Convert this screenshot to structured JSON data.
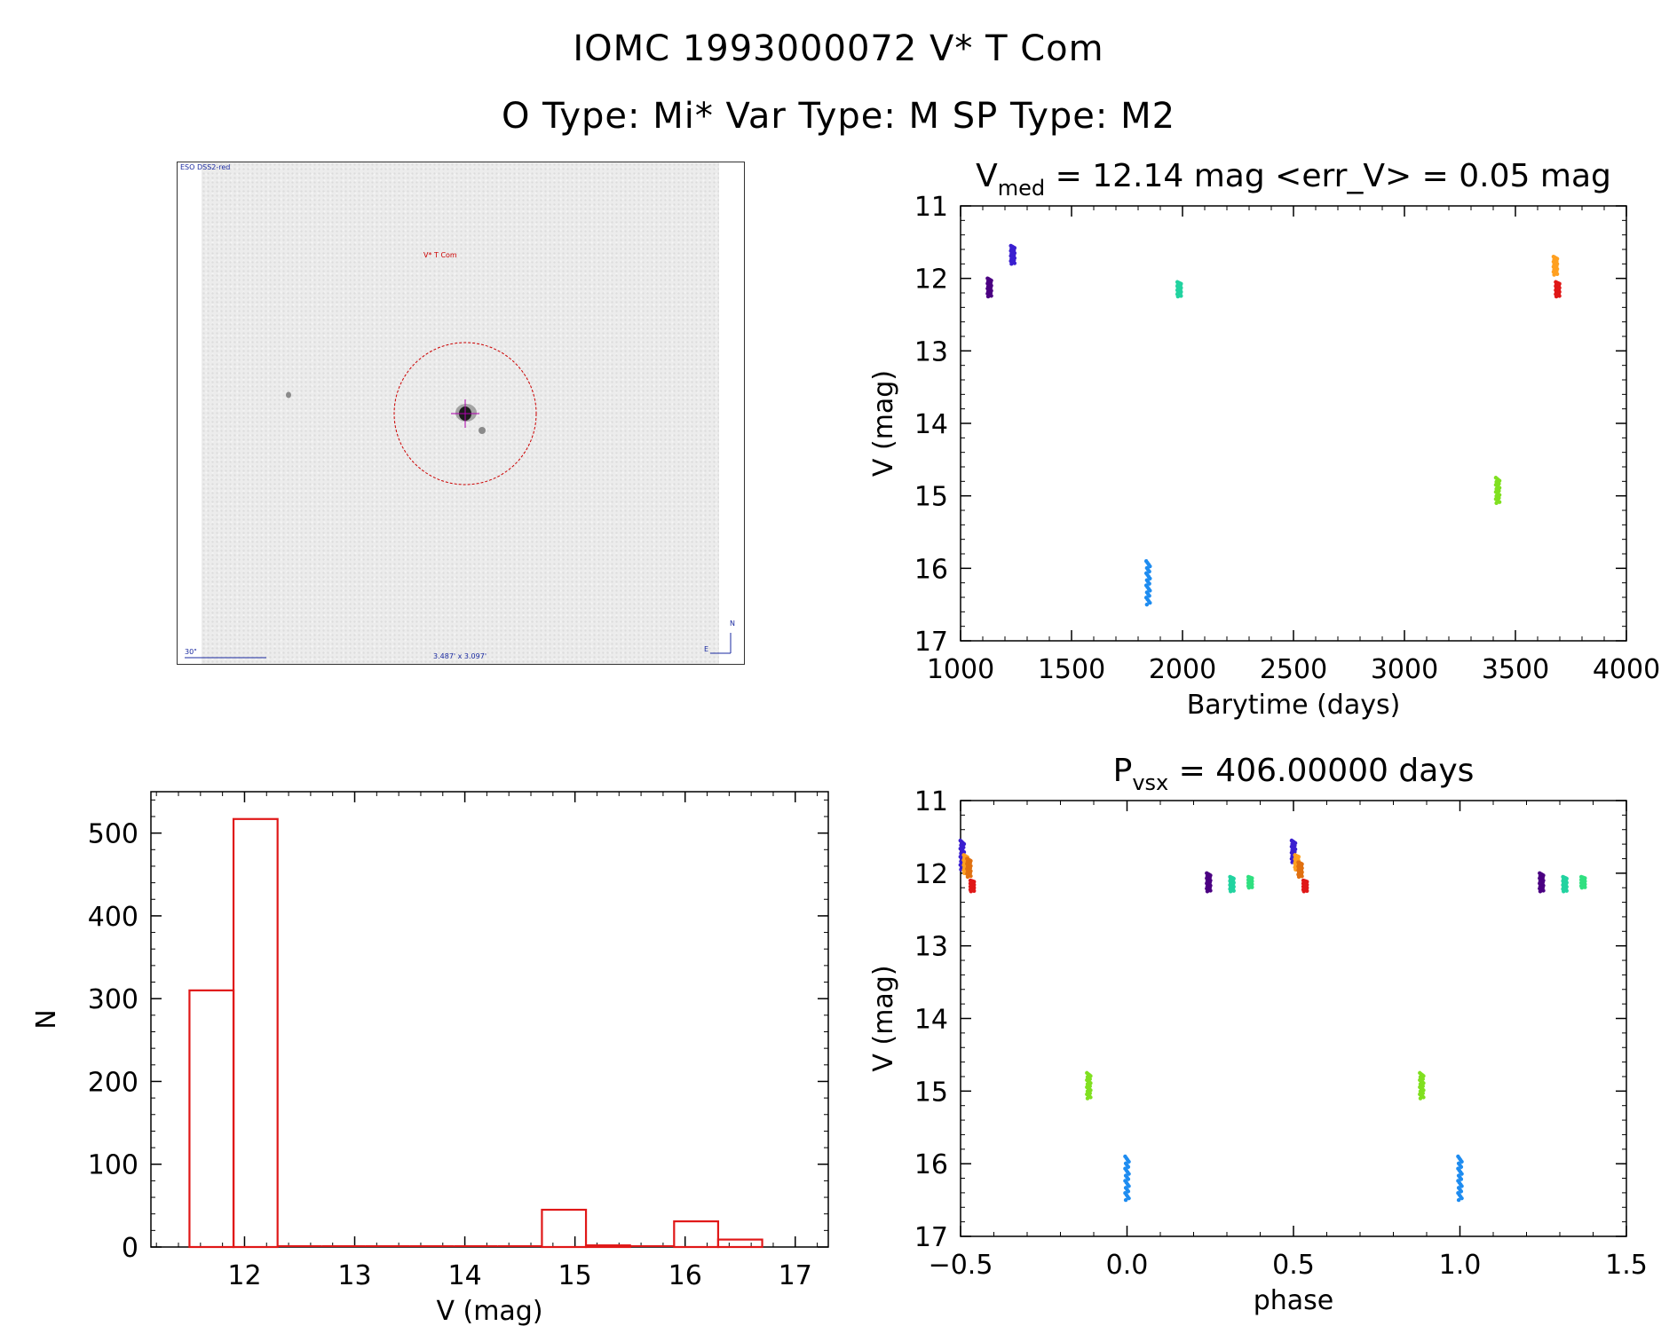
{
  "header": {
    "title_line1": "IOMC 1993000072   V* T Com",
    "title_line2": "O Type: Mi*  Var Type: M  SP Type: M2"
  },
  "stamp": {
    "survey_label": "ESO DSS2-red",
    "object_label": "V* T Com",
    "scale_label": "30\"",
    "size_label": "3.487' x 3.097'",
    "north_label": "N",
    "east_label": "E",
    "marker_color": "#cc0000"
  },
  "chart_data": [
    {
      "id": "lightcurve",
      "type": "scatter",
      "title_parts": [
        "V",
        "med",
        " = 12.14 mag <err_V> = 0.05 mag"
      ],
      "xlabel": "Barytime (days)",
      "ylabel": "V (mag)",
      "xlim": [
        1000,
        4000
      ],
      "ylim": [
        17,
        11
      ],
      "x_ticks": [
        "1000",
        "1500",
        "2000",
        "2500",
        "3000",
        "3500",
        "4000"
      ],
      "y_ticks": [
        "11",
        "12",
        "13",
        "14",
        "15",
        "16",
        "17"
      ],
      "clusters": [
        {
          "x": 1130,
          "ymin": 12.0,
          "ymax": 12.25,
          "color": "#4b0082"
        },
        {
          "x": 1235,
          "ymin": 11.55,
          "ymax": 11.8,
          "color": "#3a1fd0"
        },
        {
          "x": 1845,
          "ymin": 15.9,
          "ymax": 16.5,
          "color": "#1e8cf0"
        },
        {
          "x": 1985,
          "ymin": 12.05,
          "ymax": 12.25,
          "color": "#22d3a0"
        },
        {
          "x": 3420,
          "ymin": 14.75,
          "ymax": 15.1,
          "color": "#80e020"
        },
        {
          "x": 3680,
          "ymin": 11.7,
          "ymax": 11.95,
          "color": "#ffa020"
        },
        {
          "x": 3690,
          "ymin": 12.05,
          "ymax": 12.25,
          "color": "#e01818"
        }
      ]
    },
    {
      "id": "phase",
      "type": "scatter",
      "title_parts": [
        "P",
        "vsx",
        " = 406.00000 days"
      ],
      "xlabel": "phase",
      "ylabel": "V (mag)",
      "xlim": [
        -0.5,
        1.5
      ],
      "ylim": [
        17,
        11
      ],
      "x_ticks": [
        "−0.5",
        "0.0",
        "0.5",
        "1.0",
        "1.5"
      ],
      "y_ticks": [
        "11",
        "12",
        "13",
        "14",
        "15",
        "16",
        "17"
      ],
      "clusters": [
        {
          "x": -0.495,
          "ymin": 11.55,
          "ymax": 11.95,
          "color": "#3a1fd0"
        },
        {
          "x": -0.485,
          "ymin": 11.75,
          "ymax": 12.0,
          "color": "#ffa020"
        },
        {
          "x": -0.475,
          "ymin": 11.8,
          "ymax": 12.05,
          "color": "#e07010"
        },
        {
          "x": -0.465,
          "ymin": 12.1,
          "ymax": 12.25,
          "color": "#e01818"
        },
        {
          "x": 0.245,
          "ymin": 12.0,
          "ymax": 12.25,
          "color": "#4b0082"
        },
        {
          "x": 0.315,
          "ymin": 12.05,
          "ymax": 12.25,
          "color": "#22d3a0"
        },
        {
          "x": 0.37,
          "ymin": 12.05,
          "ymax": 12.2,
          "color": "#30e080"
        },
        {
          "x": 0.5,
          "ymin": 11.55,
          "ymax": 11.85,
          "color": "#3a1fd0"
        },
        {
          "x": 0.51,
          "ymin": 11.75,
          "ymax": 11.95,
          "color": "#ffa020"
        },
        {
          "x": 0.52,
          "ymin": 11.85,
          "ymax": 12.05,
          "color": "#e07010"
        },
        {
          "x": 0.535,
          "ymin": 12.1,
          "ymax": 12.25,
          "color": "#e01818"
        },
        {
          "x": -0.115,
          "ymin": 14.75,
          "ymax": 15.1,
          "color": "#80e020"
        },
        {
          "x": 0.0,
          "ymin": 15.9,
          "ymax": 16.5,
          "color": "#1e8cf0"
        },
        {
          "x": 0.885,
          "ymin": 14.75,
          "ymax": 15.1,
          "color": "#80e020"
        },
        {
          "x": 1.0,
          "ymin": 15.9,
          "ymax": 16.5,
          "color": "#1e8cf0"
        },
        {
          "x": 1.245,
          "ymin": 12.0,
          "ymax": 12.25,
          "color": "#4b0082"
        },
        {
          "x": 1.315,
          "ymin": 12.05,
          "ymax": 12.25,
          "color": "#22d3a0"
        },
        {
          "x": 1.37,
          "ymin": 12.05,
          "ymax": 12.2,
          "color": "#30e080"
        }
      ]
    },
    {
      "id": "histogram",
      "type": "bar",
      "xlabel": "V (mag)",
      "ylabel": "N",
      "xlim": [
        11.15,
        17.3
      ],
      "ylim": [
        0,
        550
      ],
      "x_ticks": [
        "12",
        "13",
        "14",
        "15",
        "16",
        "17"
      ],
      "y_ticks": [
        "0",
        "100",
        "200",
        "300",
        "400",
        "500"
      ],
      "bar_color": "#e01818",
      "bins": [
        {
          "from": 11.5,
          "to": 11.9,
          "count": 310
        },
        {
          "from": 11.9,
          "to": 12.3,
          "count": 517
        },
        {
          "from": 12.3,
          "to": 12.7,
          "count": 0
        },
        {
          "from": 12.7,
          "to": 13.1,
          "count": 0
        },
        {
          "from": 13.1,
          "to": 13.5,
          "count": 0
        },
        {
          "from": 13.5,
          "to": 13.9,
          "count": 0
        },
        {
          "from": 13.9,
          "to": 14.3,
          "count": 0
        },
        {
          "from": 14.3,
          "to": 14.7,
          "count": 0
        },
        {
          "from": 14.7,
          "to": 15.1,
          "count": 45
        },
        {
          "from": 15.1,
          "to": 15.5,
          "count": 2
        },
        {
          "from": 15.5,
          "to": 15.9,
          "count": 0
        },
        {
          "from": 15.9,
          "to": 16.3,
          "count": 31
        },
        {
          "from": 16.3,
          "to": 16.7,
          "count": 9
        }
      ]
    }
  ]
}
